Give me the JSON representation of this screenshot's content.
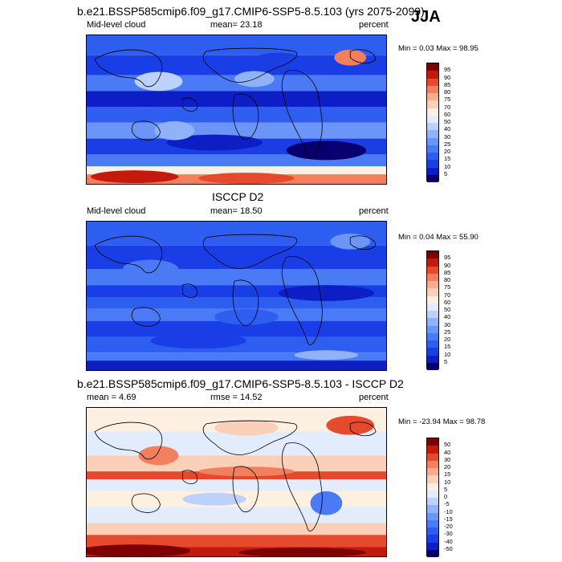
{
  "season": "JJA",
  "panels": [
    {
      "id": "model",
      "title": "b.e21.BSSP585cmip6.f09_g17.CMIP6-SSP5-8.5.103 (yrs 2075-2099)",
      "left_label": "Mid-level cloud",
      "mid_label": "mean=  23.18",
      "right_label": "percent",
      "minmax": "Min =  0.03 Max =  98.95"
    },
    {
      "id": "obs",
      "title": "ISCCP D2",
      "left_label": "Mid-level cloud",
      "mid_label": "mean=  18.50",
      "right_label": "percent",
      "minmax": "Min =  0.04 Max =  55.90"
    },
    {
      "id": "diff",
      "title": "b.e21.BSSP585cmip6.f09_g17.CMIP6-SSP5-8.5.103 - ISCCP D2",
      "left_label": "mean =   4.69",
      "mid_label": "rmse =  14.52",
      "right_label": "percent",
      "minmax": "Min = -23.94 Max =  98.78"
    }
  ],
  "chart_data": [
    {
      "type": "heatmap",
      "title": "b.e21.BSSP585cmip6.f09_g17.CMIP6-SSP5-8.5.103 (yrs 2075-2099)",
      "variable": "Mid-level cloud",
      "units": "percent",
      "mean": 23.18,
      "min": 0.03,
      "max": 98.95,
      "colorbar_levels": [
        5,
        10,
        15,
        20,
        25,
        30,
        40,
        50,
        60,
        70,
        75,
        80,
        85,
        90,
        95
      ]
    },
    {
      "type": "heatmap",
      "title": "ISCCP D2",
      "variable": "Mid-level cloud",
      "units": "percent",
      "mean": 18.5,
      "min": 0.04,
      "max": 55.9,
      "colorbar_levels": [
        5,
        10,
        15,
        20,
        25,
        30,
        40,
        50,
        60,
        70,
        75,
        80,
        85,
        90,
        95
      ]
    },
    {
      "type": "heatmap",
      "title": "b.e21.BSSP585cmip6.f09_g17.CMIP6-SSP5-8.5.103 - ISCCP D2",
      "units": "percent",
      "mean": 4.69,
      "rmse": 14.52,
      "min": -23.94,
      "max": 98.78,
      "colorbar_levels": [
        -50,
        -40,
        -30,
        -20,
        -15,
        -10,
        -5,
        0,
        5,
        10,
        15,
        20,
        30,
        40,
        50
      ]
    }
  ],
  "colors": {
    "abs_scale": [
      "#08006e",
      "#0d1fc4",
      "#1a3ee6",
      "#2e5ef0",
      "#4a7af5",
      "#6b96f7",
      "#91b2f8",
      "#bcd1fb",
      "#e2ecfd",
      "#fdf0e0",
      "#fbd0b8",
      "#f8ac8f",
      "#f2805f",
      "#e54a2c",
      "#c41a0e",
      "#7f0000"
    ],
    "diff_scale": [
      "#08006e",
      "#0d1fc4",
      "#1a3ee6",
      "#2e5ef0",
      "#4a7af5",
      "#6b96f7",
      "#91b2f8",
      "#bcd1fb",
      "#e2ecfd",
      "#fdf0e0",
      "#fbd0b8",
      "#f8ac8f",
      "#f2805f",
      "#e54a2c",
      "#c41a0e",
      "#7f0000"
    ]
  }
}
